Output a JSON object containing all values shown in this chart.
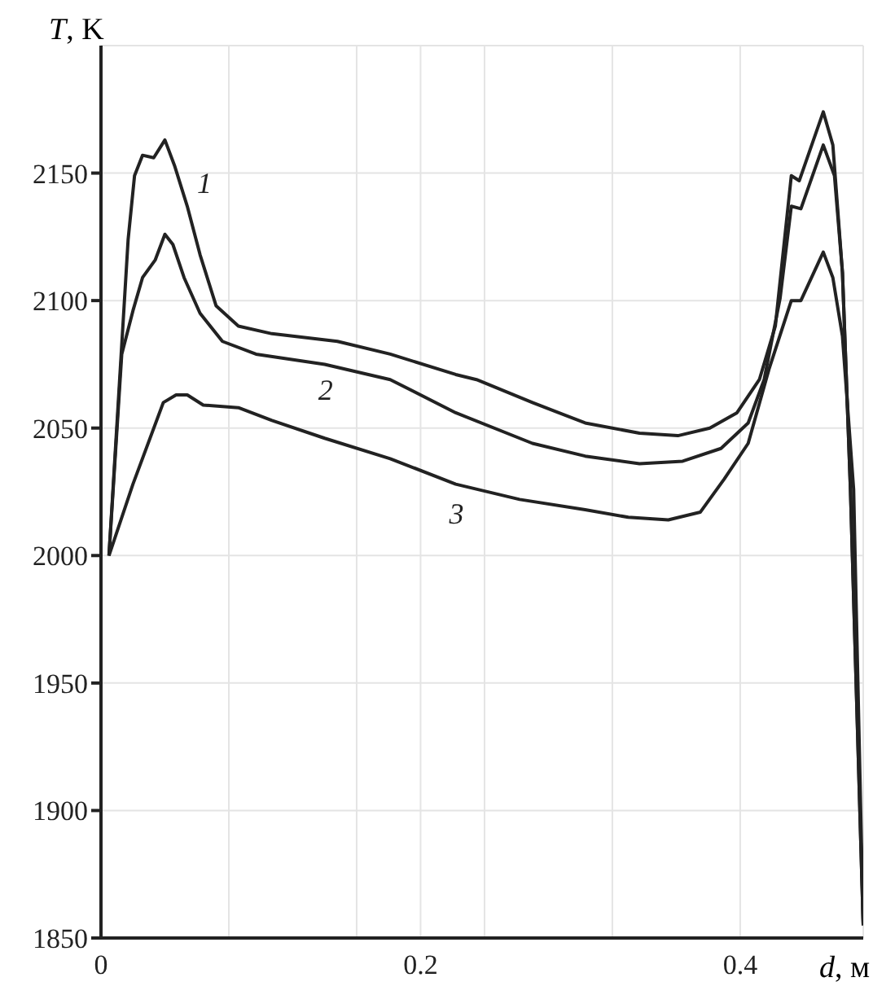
{
  "chart_data": {
    "type": "line",
    "xlabel": "d, м",
    "ylabel": "T, K",
    "xlim": [
      0,
      0.477
    ],
    "ylim": [
      1850,
      2200
    ],
    "xticks": [
      0,
      {
        "value": 0.08,
        "label": null
      },
      {
        "value": 0.16,
        "label": null
      },
      0.2,
      {
        "value": 0.24,
        "label": null
      },
      {
        "value": 0.32,
        "label": null
      },
      0.4
    ],
    "yticks": [
      1850,
      1900,
      1950,
      2000,
      2050,
      2100,
      2150
    ],
    "grid": true,
    "legend": false,
    "marker": "none",
    "line_style": "solid",
    "series": [
      {
        "name": "1",
        "color": "#222222",
        "x": [
          0.005,
          0.008,
          0.017,
          0.021,
          0.026,
          0.033,
          0.04,
          0.046,
          0.054,
          0.062,
          0.072,
          0.086,
          0.107,
          0.148,
          0.181,
          0.222,
          0.235,
          0.27,
          0.303,
          0.337,
          0.361,
          0.381,
          0.398,
          0.412,
          0.422,
          0.432,
          0.437,
          0.452,
          0.458,
          0.464,
          0.469,
          0.477
        ],
        "values": [
          2000,
          2031,
          2124,
          2149,
          2157,
          2156,
          2163,
          2153,
          2137,
          2118,
          2098,
          2090,
          2087,
          2084,
          2079,
          2071,
          2069,
          2060,
          2052,
          2048,
          2047,
          2050,
          2056,
          2069,
          2090,
          2149,
          2147,
          2174,
          2161,
          2111,
          2026,
          1855
        ]
      },
      {
        "name": "2",
        "color": "#222222",
        "x": [
          0.005,
          0.013,
          0.02,
          0.026,
          0.034,
          0.04,
          0.045,
          0.052,
          0.062,
          0.076,
          0.097,
          0.14,
          0.181,
          0.222,
          0.27,
          0.303,
          0.337,
          0.364,
          0.388,
          0.405,
          0.415,
          0.425,
          0.432,
          0.438,
          0.452,
          0.459,
          0.464,
          0.469,
          0.477
        ],
        "values": [
          2000,
          2079,
          2096,
          2109,
          2116,
          2126,
          2122,
          2109,
          2095,
          2084,
          2079,
          2075,
          2069,
          2056,
          2044,
          2039,
          2036,
          2037,
          2042,
          2052,
          2069,
          2101,
          2137,
          2136,
          2161,
          2149,
          2111,
          2026,
          1855
        ]
      },
      {
        "name": "3",
        "color": "#222222",
        "x": [
          0.005,
          0.02,
          0.039,
          0.047,
          0.054,
          0.064,
          0.086,
          0.107,
          0.14,
          0.181,
          0.222,
          0.262,
          0.303,
          0.33,
          0.355,
          0.375,
          0.39,
          0.405,
          0.418,
          0.432,
          0.438,
          0.452,
          0.458,
          0.464,
          0.471,
          0.477
        ],
        "values": [
          2000,
          2028,
          2060,
          2063,
          2063,
          2059,
          2058,
          2053,
          2046,
          2038,
          2028,
          2022,
          2018,
          2015,
          2014,
          2017,
          2030,
          2044,
          2073,
          2100,
          2100,
          2119,
          2109,
          2086,
          2026,
          1855
        ]
      }
    ]
  }
}
